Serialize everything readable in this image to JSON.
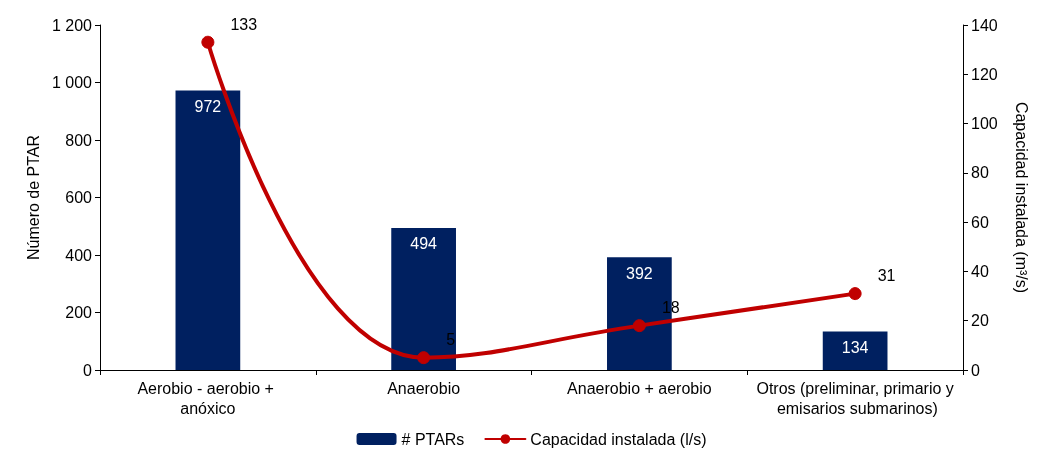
{
  "chart_data": {
    "type": "bar",
    "categories": [
      "Aerobio - aerobio + anóxico",
      "Anaerobio",
      "Anaerobio + aerobio",
      "Otros (preliminar, primario y emisarios submarinos)"
    ],
    "series": [
      {
        "name": "# PTARs",
        "color": "#002060",
        "values": [
          972,
          494,
          392,
          134
        ]
      },
      {
        "name": "Capacidad instalada (l/s)",
        "type": "line",
        "axis": "y2",
        "color": "#c00000",
        "values": [
          133,
          5,
          18,
          31
        ]
      }
    ],
    "ylabel": "Número de PTAR",
    "y2label": "Capacidad instalada (m³/s)",
    "ylim": [
      0,
      1200
    ],
    "yticks": [
      0,
      200,
      400,
      600,
      800,
      {
        "value": 1000,
        "label": "1 000"
      },
      {
        "value": 1200,
        "label": "1 200"
      }
    ],
    "y2lim": [
      0,
      140
    ],
    "y2ticks": [
      0,
      20,
      40,
      60,
      80,
      100,
      120,
      140
    ],
    "data_labels": true,
    "legend": "bottom",
    "grid": false,
    "marker": "circle",
    "line_style": "solid"
  }
}
